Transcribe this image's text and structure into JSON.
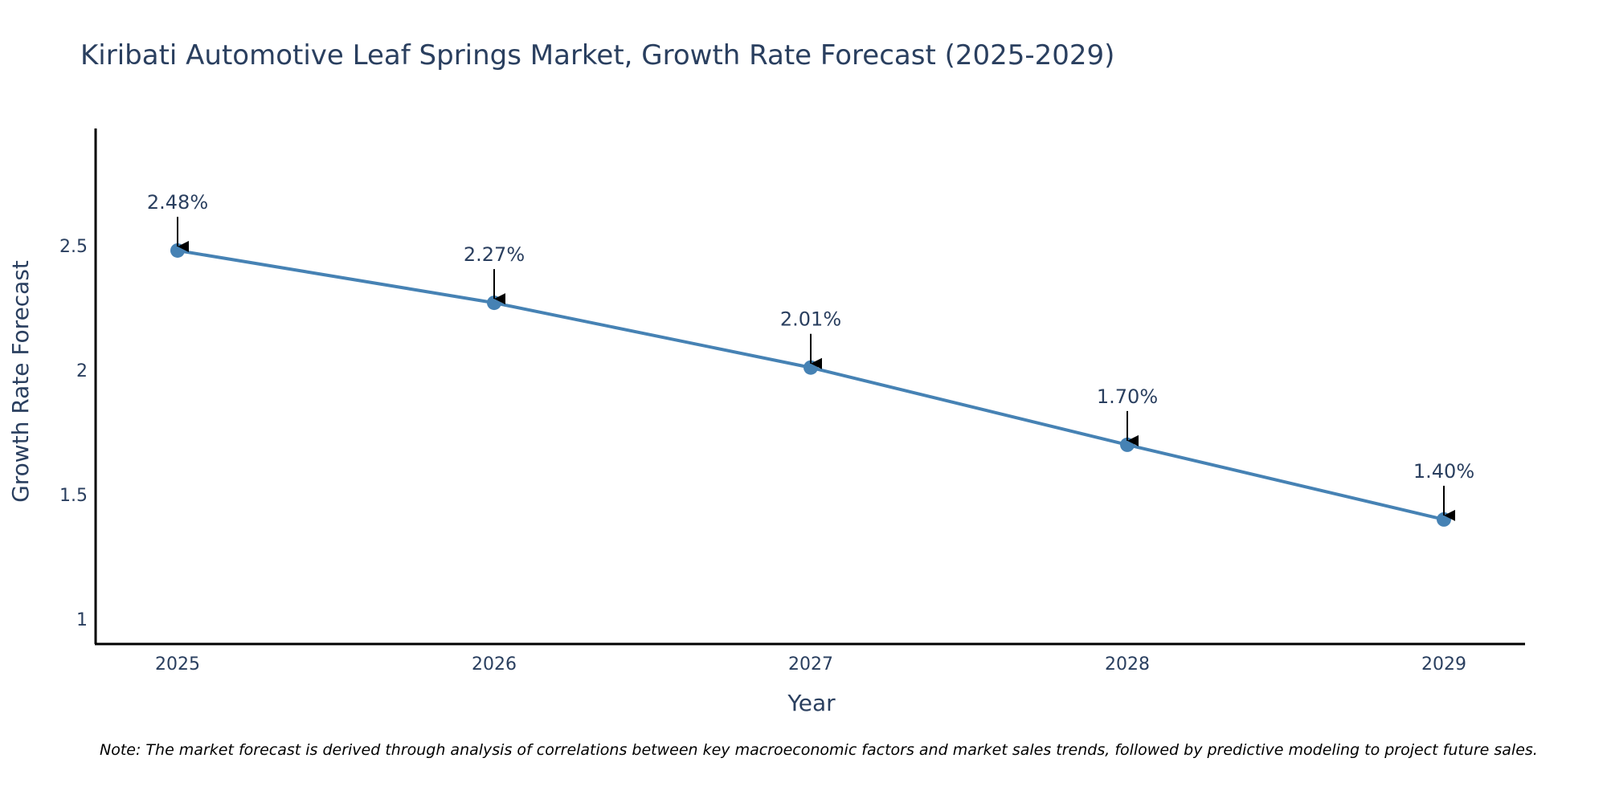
{
  "chart_data": {
    "type": "line",
    "title": "Kiribati Automotive Leaf Springs Market, Growth Rate Forecast (2025-2029)",
    "xlabel": "Year",
    "ylabel": "Growth Rate Forecast",
    "categories": [
      "2025",
      "2026",
      "2027",
      "2028",
      "2029"
    ],
    "series": [
      {
        "name": "Growth Rate Forecast",
        "values": [
          2.48,
          2.27,
          2.01,
          1.7,
          1.4
        ],
        "labels": [
          "2.48%",
          "2.27%",
          "2.01%",
          "1.70%",
          "1.40%"
        ],
        "color": "#4682b4"
      }
    ],
    "ylim": [
      0.9,
      2.97
    ],
    "yticks": [
      1,
      1.5,
      2,
      2.5
    ],
    "ytick_labels": [
      "1",
      "1.5",
      "2",
      "2.5"
    ],
    "grid": false,
    "note": "Note: The market forecast is derived through analysis of correlations between key macroeconomic factors and market sales trends, followed by predictive modeling to project future sales."
  },
  "colors": {
    "line": "#4682b4",
    "axis": "#000000",
    "text": "#2a3f5f",
    "arrow": "#000000"
  }
}
